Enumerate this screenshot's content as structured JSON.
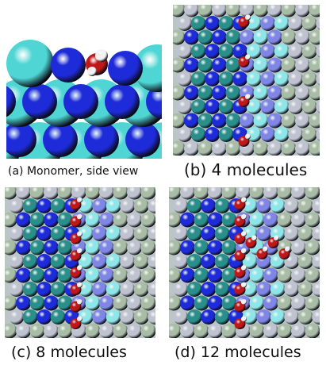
{
  "figure": {
    "panels": [
      {
        "id": "a",
        "caption": "(a) Monomer, side view",
        "water_molecules": 1
      },
      {
        "id": "b",
        "caption": "(b) 4 molecules",
        "water_molecules": 4
      },
      {
        "id": "c",
        "caption": "(c) 8 molecules",
        "water_molecules": 8
      },
      {
        "id": "d",
        "caption": "(d) 12 molecules",
        "water_molecules": 12
      }
    ]
  },
  "colors": {
    "cyan_atom": "#4fd6d4",
    "blue_atom": "#1e2bd8",
    "teal_atom": "#2a8f8a",
    "light_cyan_atom": "#8fe6e8",
    "periwinkle_atom": "#7f86e6",
    "gray_atom": "#bfc3cf",
    "sage_atom": "#a9bda6",
    "oxygen": "#c01818",
    "hydrogen": "#f2f2f2",
    "background": "#ffffff"
  }
}
